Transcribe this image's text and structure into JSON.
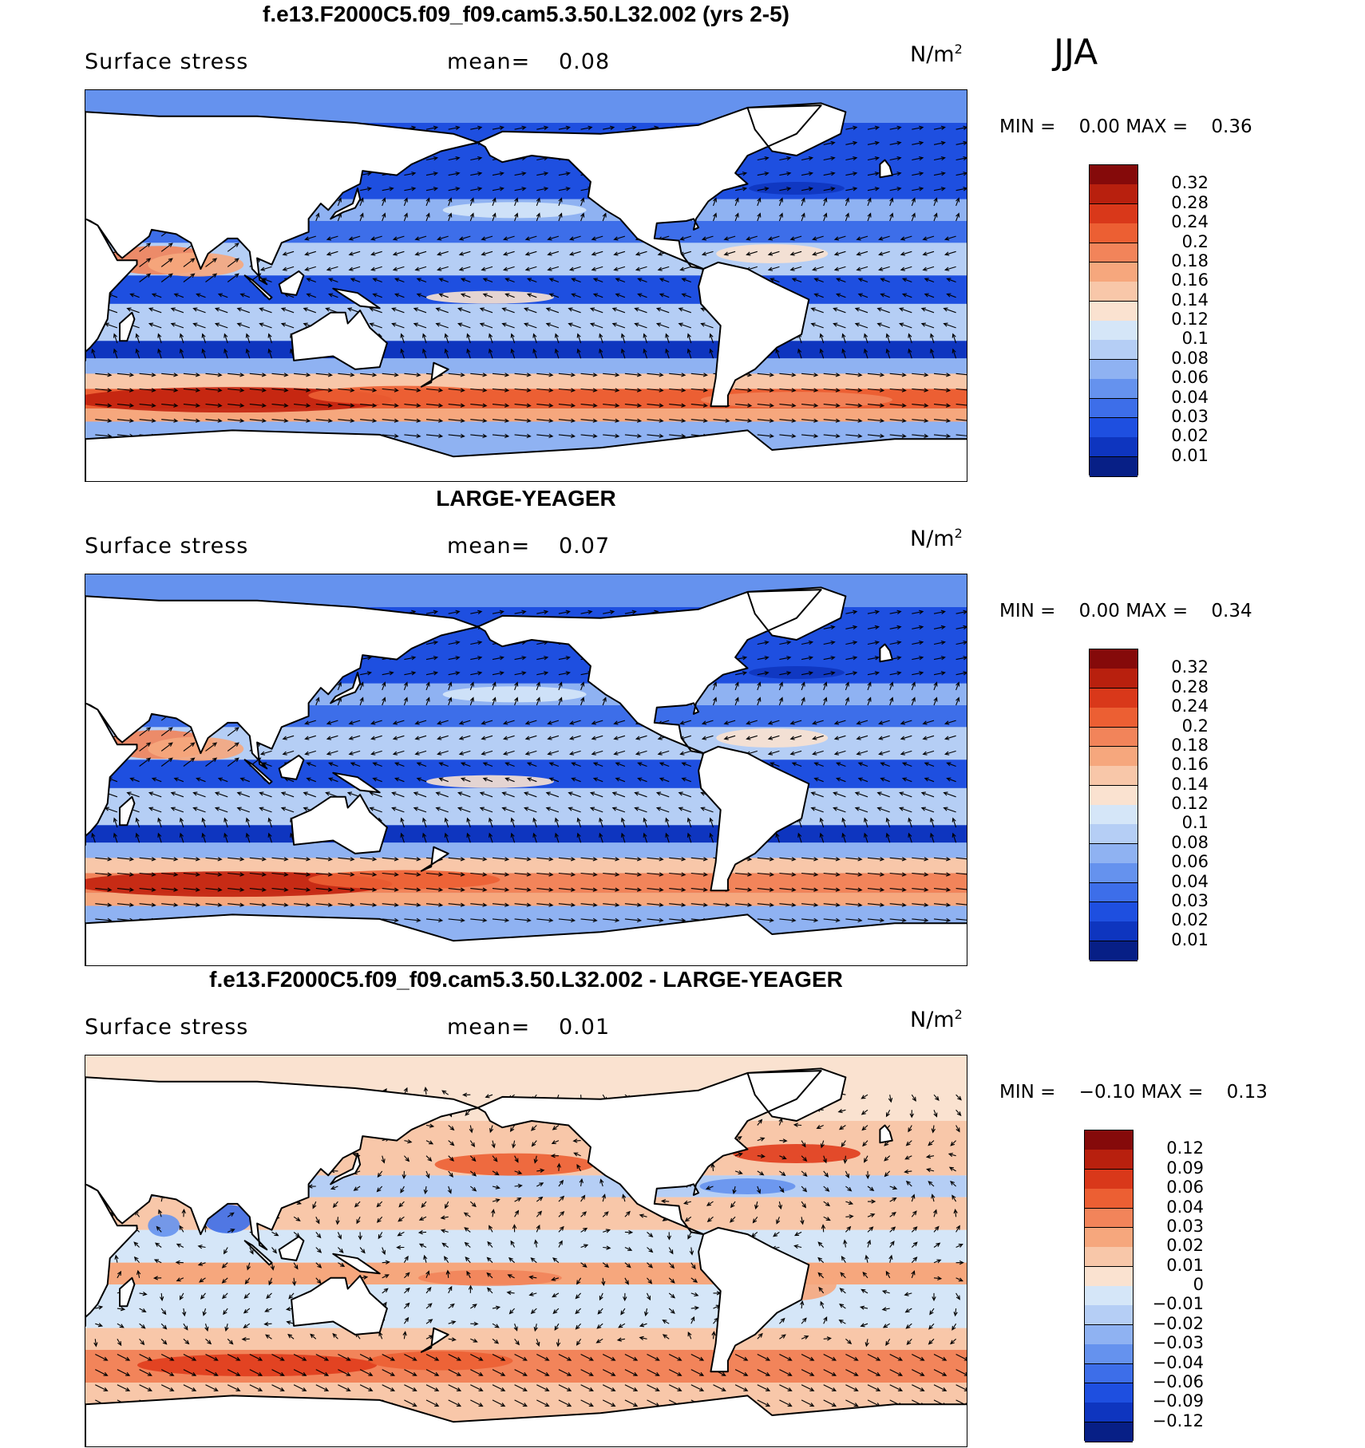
{
  "season": "JJA",
  "colors": {
    "positive": [
      "#fae2d0",
      "#f8c7a9",
      "#f6a77d",
      "#f2845a",
      "#ec5f33",
      "#e03c1c",
      "#c2210d",
      "#850a0a"
    ],
    "negative": [
      "#d5e6f8",
      "#b5cef5",
      "#8fb2f2",
      "#6592ee",
      "#3d6ee9",
      "#1e4fe0",
      "#0e35bf",
      "#071f86"
    ],
    "land": "#ffffff",
    "coast": "#000000"
  },
  "panels": [
    {
      "title": "f.e13.F2000C5.f09_f09.cam5.3.50.L32.002 (yrs 2-5)",
      "variable": "Surface stress",
      "mean_label": "mean=",
      "mean_value": "0.08",
      "units": "N/m",
      "units_sup": "2",
      "min_label": "MIN =",
      "min_value": "0.00",
      "max_label": "MAX =",
      "max_value": "0.36",
      "colorbar_labels": [
        "0.32",
        "0.28",
        "0.24",
        "0.2",
        "0.18",
        "0.16",
        "0.14",
        "0.12",
        "0.1",
        "0.08",
        "0.06",
        "0.04",
        "0.03",
        "0.02",
        "0.01"
      ],
      "colorbar_colors": [
        "#850a0a",
        "#b8200e",
        "#d9381a",
        "#ec5f33",
        "#f2845a",
        "#f6a77d",
        "#f8c7a9",
        "#fae2d0",
        "#d5e6f8",
        "#b5cef5",
        "#8fb2f2",
        "#6592ee",
        "#3d6ee9",
        "#1e4fe0",
        "#0e35bf",
        "#071f86"
      ]
    },
    {
      "title": "LARGE-YEAGER",
      "variable": "Surface stress",
      "mean_label": "mean=",
      "mean_value": "0.07",
      "units": "N/m",
      "units_sup": "2",
      "min_label": "MIN =",
      "min_value": "0.00",
      "max_label": "MAX =",
      "max_value": "0.34",
      "colorbar_labels": [
        "0.32",
        "0.28",
        "0.24",
        "0.2",
        "0.18",
        "0.16",
        "0.14",
        "0.12",
        "0.1",
        "0.08",
        "0.06",
        "0.04",
        "0.03",
        "0.02",
        "0.01"
      ],
      "colorbar_colors": [
        "#850a0a",
        "#b8200e",
        "#d9381a",
        "#ec5f33",
        "#f2845a",
        "#f6a77d",
        "#f8c7a9",
        "#fae2d0",
        "#d5e6f8",
        "#b5cef5",
        "#8fb2f2",
        "#6592ee",
        "#3d6ee9",
        "#1e4fe0",
        "#0e35bf",
        "#071f86"
      ]
    },
    {
      "title": "f.e13.F2000C5.f09_f09.cam5.3.50.L32.002 - LARGE-YEAGER",
      "variable": "Surface stress",
      "mean_label": "mean=",
      "mean_value": "0.01",
      "units": "N/m",
      "units_sup": "2",
      "min_label": "MIN =",
      "min_value": "−0.10",
      "max_label": "MAX =",
      "max_value": "0.13",
      "colorbar_labels": [
        "0.12",
        "0.09",
        "0.06",
        "0.04",
        "0.03",
        "0.02",
        "0.01",
        "0",
        "−0.01",
        "−0.02",
        "−0.03",
        "−0.04",
        "−0.06",
        "−0.09",
        "−0.12"
      ],
      "colorbar_colors": [
        "#850a0a",
        "#b8200e",
        "#d9381a",
        "#ec5f33",
        "#f2845a",
        "#f6a77d",
        "#f8c7a9",
        "#fae2d0",
        "#d5e6f8",
        "#b5cef5",
        "#8fb2f2",
        "#6592ee",
        "#3d6ee9",
        "#1e4fe0",
        "#0e35bf",
        "#071f86"
      ]
    }
  ]
}
